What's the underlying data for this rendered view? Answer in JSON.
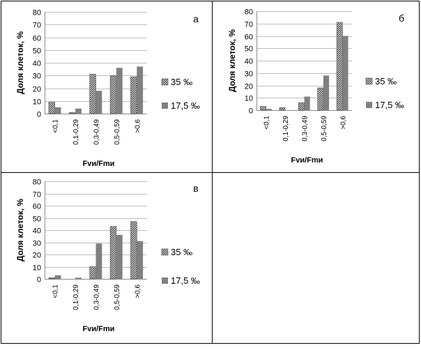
{
  "chart_data": [
    {
      "type": "bar",
      "panel_label": "а",
      "categories": [
        "<0,1",
        "0,1-0,29",
        "0,3-0,49",
        "0,5-0,59",
        ">0,6"
      ],
      "series": [
        {
          "name": "35 ‰",
          "values": [
            9,
            1,
            31,
            30,
            29
          ]
        },
        {
          "name": "17,5 ‰",
          "values": [
            5,
            4,
            18,
            36,
            37
          ]
        }
      ],
      "xlabel": "Fvи/Fmи",
      "ylabel": "Доля клеток, %",
      "ylim": [
        0,
        80
      ],
      "yticks": [
        "0",
        "10",
        "20",
        "30",
        "40",
        "50",
        "60",
        "70",
        "80"
      ],
      "grid": true,
      "legend_position": "right"
    },
    {
      "type": "bar",
      "panel_label": "б",
      "categories": [
        "<0,1",
        "0,1-0,29",
        "0,3-0,49",
        "0,5-0,59",
        ">0,6"
      ],
      "series": [
        {
          "name": "35 ‰",
          "values": [
            3,
            2,
            6,
            18,
            71
          ]
        },
        {
          "name": "17,5 ‰",
          "values": [
            1,
            0,
            11,
            28,
            60
          ]
        }
      ],
      "xlabel": "Fvи/Fmи",
      "ylabel": "Доля клеток, %",
      "ylim": [
        0,
        80
      ],
      "yticks": [
        "0",
        "10",
        "20",
        "30",
        "40",
        "50",
        "60",
        "70",
        "80"
      ],
      "grid": true,
      "legend_position": "right"
    },
    {
      "type": "bar",
      "panel_label": "в",
      "categories": [
        "<0,1",
        "0,1-0,29",
        "0,3-0,49",
        "0,5-0,59",
        ">0,6"
      ],
      "series": [
        {
          "name": "35 ‰",
          "values": [
            1,
            0,
            10,
            43,
            47
          ]
        },
        {
          "name": "17,5 ‰",
          "values": [
            3,
            1,
            29,
            36,
            31
          ]
        }
      ],
      "xlabel": "Fvи/Fmи",
      "ylabel": "Доля клеток, %",
      "ylim": [
        0,
        80
      ],
      "yticks": [
        "0",
        "10",
        "20",
        "30",
        "40",
        "50",
        "60",
        "70",
        "80"
      ],
      "grid": true,
      "legend_position": "right"
    }
  ],
  "colors": {
    "series_solid": "#808080",
    "pattern_bg": "#ffffff",
    "pattern_stripe": "#1a1a1a",
    "grid": "#bfbfbf",
    "axis": "#8c8c8c",
    "frame": "#000000",
    "text": "#000000"
  }
}
